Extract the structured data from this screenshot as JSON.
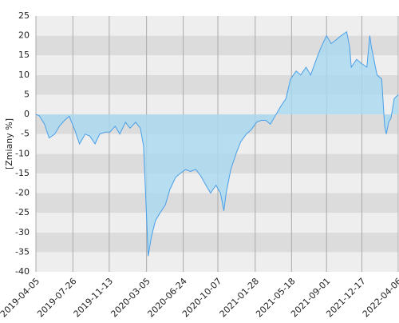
{
  "chart_data": {
    "type": "area",
    "y_label": "[Zmiany %]",
    "x": [
      "2019-04-05",
      "2019-04-15",
      "2019-05-01",
      "2019-05-15",
      "2019-06-01",
      "2019-06-15",
      "2019-07-01",
      "2019-07-15",
      "2019-08-01",
      "2019-08-15",
      "2019-09-01",
      "2019-09-15",
      "2019-10-01",
      "2019-10-15",
      "2019-11-01",
      "2019-11-15",
      "2019-12-01",
      "2019-12-15",
      "2020-01-01",
      "2020-01-15",
      "2020-02-01",
      "2020-02-15",
      "2020-02-25",
      "2020-03-01",
      "2020-03-10",
      "2020-03-20",
      "2020-04-01",
      "2020-04-15",
      "2020-05-01",
      "2020-05-15",
      "2020-06-01",
      "2020-06-15",
      "2020-07-01",
      "2020-07-15",
      "2020-08-01",
      "2020-08-15",
      "2020-09-01",
      "2020-09-15",
      "2020-10-01",
      "2020-10-15",
      "2020-10-25",
      "2020-11-01",
      "2020-11-15",
      "2020-12-01",
      "2020-12-15",
      "2021-01-01",
      "2021-01-15",
      "2021-02-01",
      "2021-02-15",
      "2021-03-01",
      "2021-03-15",
      "2021-04-01",
      "2021-04-15",
      "2021-05-01",
      "2021-05-15",
      "2021-06-01",
      "2021-06-15",
      "2021-07-01",
      "2021-07-15",
      "2021-08-01",
      "2021-08-15",
      "2021-09-01",
      "2021-09-15",
      "2021-10-01",
      "2021-10-15",
      "2021-11-01",
      "2021-11-10",
      "2021-11-15",
      "2021-12-01",
      "2021-12-15",
      "2022-01-01",
      "2022-01-10",
      "2022-01-15",
      "2022-02-01",
      "2022-02-15",
      "2022-02-24",
      "2022-03-01",
      "2022-03-08",
      "2022-03-15",
      "2022-03-25",
      "2022-04-06"
    ],
    "values": [
      0,
      -0.3,
      -2.5,
      -6,
      -5,
      -3,
      -1.5,
      -0.5,
      -4,
      -7.5,
      -5,
      -5.5,
      -7.5,
      -5,
      -4.5,
      -4.5,
      -3,
      -5,
      -2,
      -3.5,
      -2,
      -3.5,
      -8,
      -18,
      -36,
      -31,
      -27,
      -25,
      -23,
      -19,
      -16,
      -15,
      -14,
      -14.5,
      -14,
      -15.5,
      -18,
      -20,
      -18,
      -20,
      -24.5,
      -20,
      -14,
      -10,
      -7,
      -5,
      -4,
      -2,
      -1.5,
      -1.5,
      -2.5,
      0,
      2,
      4,
      9,
      11,
      10,
      12,
      10,
      14,
      17,
      20,
      18,
      19,
      20,
      21,
      17,
      12,
      14,
      13,
      12,
      20,
      17,
      10,
      9,
      -3,
      -5,
      -2,
      -1,
      4,
      5
    ],
    "color": "#4a9fe8",
    "fill": "#a9d9f0",
    "xlim": [
      "2019-04-05",
      "2022-04-06"
    ],
    "xticks": [
      "2019-04-05",
      "2019-07-26",
      "2019-11-13",
      "2020-03-05",
      "2020-06-24",
      "2020-10-07",
      "2021-01-28",
      "2021-05-18",
      "2021-09-01",
      "2021-12-17",
      "2022-04-06"
    ],
    "ylim": [
      -40,
      25
    ],
    "yticks": [
      -40,
      -35,
      -30,
      -25,
      -20,
      -15,
      -10,
      -5,
      0,
      5,
      10,
      15,
      20,
      25
    ],
    "grid": true
  }
}
